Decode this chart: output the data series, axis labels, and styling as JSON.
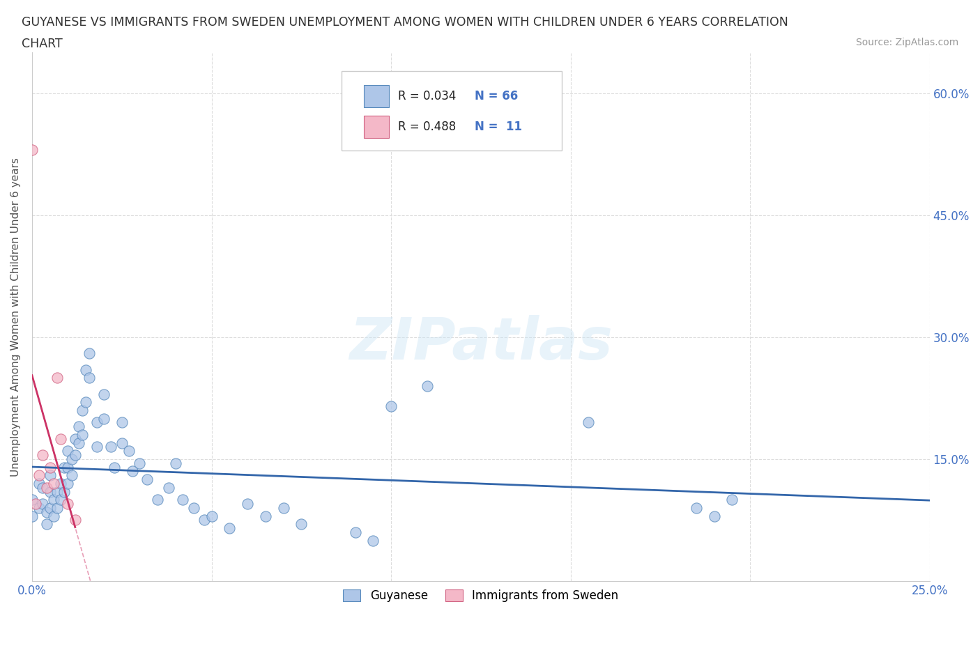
{
  "title_line1": "GUYANESE VS IMMIGRANTS FROM SWEDEN UNEMPLOYMENT AMONG WOMEN WITH CHILDREN UNDER 6 YEARS CORRELATION",
  "title_line2": "CHART",
  "source": "Source: ZipAtlas.com",
  "ylabel": "Unemployment Among Women with Children Under 6 years",
  "xlim": [
    0.0,
    0.25
  ],
  "ylim": [
    0.0,
    0.65
  ],
  "xtick_vals": [
    0.0,
    0.05,
    0.1,
    0.15,
    0.2,
    0.25
  ],
  "xticklabels": [
    "0.0%",
    "",
    "",
    "",
    "",
    "25.0%"
  ],
  "ytick_vals": [
    0.0,
    0.15,
    0.3,
    0.45,
    0.6
  ],
  "yticklabels": [
    "",
    "15.0%",
    "30.0%",
    "45.0%",
    "60.0%"
  ],
  "watermark": "ZIPatlas",
  "color_blue": "#aec6e8",
  "color_pink": "#f4b8c8",
  "edge_blue": "#5588bb",
  "edge_pink": "#d06080",
  "line_blue": "#3366aa",
  "line_pink": "#cc3366",
  "line_pink_dash": "#e8a0b8",
  "guyanese_x": [
    0.0,
    0.0,
    0.002,
    0.002,
    0.003,
    0.003,
    0.004,
    0.004,
    0.005,
    0.005,
    0.005,
    0.006,
    0.006,
    0.007,
    0.007,
    0.008,
    0.008,
    0.009,
    0.009,
    0.01,
    0.01,
    0.01,
    0.011,
    0.011,
    0.012,
    0.012,
    0.013,
    0.013,
    0.014,
    0.014,
    0.015,
    0.015,
    0.016,
    0.016,
    0.018,
    0.018,
    0.02,
    0.02,
    0.022,
    0.023,
    0.025,
    0.025,
    0.027,
    0.028,
    0.03,
    0.032,
    0.035,
    0.038,
    0.04,
    0.042,
    0.045,
    0.048,
    0.05,
    0.055,
    0.06,
    0.065,
    0.07,
    0.075,
    0.09,
    0.095,
    0.1,
    0.11,
    0.155,
    0.185,
    0.19,
    0.195
  ],
  "guyanese_y": [
    0.1,
    0.08,
    0.12,
    0.09,
    0.115,
    0.095,
    0.085,
    0.07,
    0.13,
    0.11,
    0.09,
    0.1,
    0.08,
    0.11,
    0.09,
    0.12,
    0.1,
    0.14,
    0.11,
    0.16,
    0.14,
    0.12,
    0.15,
    0.13,
    0.175,
    0.155,
    0.19,
    0.17,
    0.21,
    0.18,
    0.26,
    0.22,
    0.28,
    0.25,
    0.195,
    0.165,
    0.23,
    0.2,
    0.165,
    0.14,
    0.195,
    0.17,
    0.16,
    0.135,
    0.145,
    0.125,
    0.1,
    0.115,
    0.145,
    0.1,
    0.09,
    0.075,
    0.08,
    0.065,
    0.095,
    0.08,
    0.09,
    0.07,
    0.06,
    0.05,
    0.215,
    0.24,
    0.195,
    0.09,
    0.08,
    0.1
  ],
  "sweden_x": [
    0.0,
    0.001,
    0.002,
    0.003,
    0.004,
    0.005,
    0.006,
    0.007,
    0.008,
    0.01,
    0.012
  ],
  "sweden_y": [
    0.53,
    0.095,
    0.13,
    0.155,
    0.115,
    0.14,
    0.12,
    0.25,
    0.175,
    0.095,
    0.075
  ]
}
